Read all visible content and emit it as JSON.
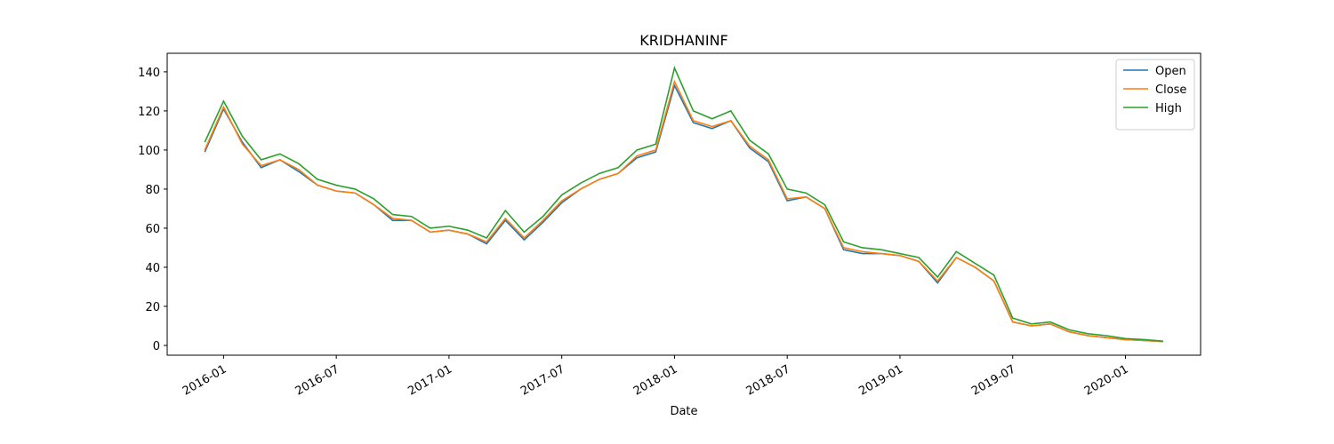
{
  "chart_data": {
    "type": "line",
    "title": "KRIDHANINF",
    "xlabel": "Date",
    "x": [
      "2015-12",
      "2016-01",
      "2016-02",
      "2016-03",
      "2016-04",
      "2016-05",
      "2016-06",
      "2016-07",
      "2016-08",
      "2016-09",
      "2016-10",
      "2016-11",
      "2016-12",
      "2017-01",
      "2017-02",
      "2017-03",
      "2017-04",
      "2017-05",
      "2017-06",
      "2017-07",
      "2017-08",
      "2017-09",
      "2017-10",
      "2017-11",
      "2017-12",
      "2018-01",
      "2018-02",
      "2018-03",
      "2018-04",
      "2018-05",
      "2018-06",
      "2018-07",
      "2018-08",
      "2018-09",
      "2018-10",
      "2018-11",
      "2018-12",
      "2019-01",
      "2019-02",
      "2019-03",
      "2019-04",
      "2019-05",
      "2019-06",
      "2019-07",
      "2019-08",
      "2019-09",
      "2019-10",
      "2019-11",
      "2019-12",
      "2020-01",
      "2020-02",
      "2020-03"
    ],
    "series": [
      {
        "name": "Open",
        "color": "#1f77b4",
        "values": [
          99,
          121,
          104,
          91,
          95,
          89,
          82,
          79,
          78,
          72,
          64,
          64,
          58,
          59,
          57,
          52,
          64,
          54,
          63,
          73,
          80,
          85,
          88,
          96,
          99,
          133,
          114,
          111,
          115,
          101,
          94,
          74,
          76,
          70,
          49,
          47,
          47,
          46,
          43,
          32,
          45,
          40,
          33,
          12,
          10,
          11,
          7,
          5,
          4,
          3,
          2.5,
          2
        ]
      },
      {
        "name": "Close",
        "color": "#ff7f0e",
        "values": [
          100,
          122,
          103,
          92,
          95,
          90,
          82,
          79,
          78,
          72,
          65,
          64,
          58,
          59,
          57,
          53,
          65,
          55,
          64,
          74,
          80,
          85,
          88,
          97,
          100,
          135,
          115,
          112,
          115,
          102,
          95,
          75,
          76,
          70,
          50,
          48,
          47,
          46,
          43,
          33,
          45,
          40,
          33,
          12,
          10,
          11,
          7,
          5,
          4,
          3,
          2.5,
          2
        ]
      },
      {
        "name": "High",
        "color": "#2ca02c",
        "values": [
          104,
          125,
          107,
          95,
          98,
          93,
          85,
          82,
          80,
          75,
          67,
          66,
          60,
          61,
          59,
          55,
          69,
          58,
          66,
          77,
          83,
          88,
          91,
          100,
          103,
          142,
          120,
          116,
          120,
          105,
          98,
          80,
          78,
          72,
          53,
          50,
          49,
          47,
          45,
          35,
          48,
          42,
          36,
          14,
          11,
          12,
          8,
          6,
          5,
          3.5,
          3,
          2.2
        ]
      }
    ],
    "xlim": [
      "2015-10",
      "2020-05"
    ],
    "xticks": [
      "2016-01",
      "2016-07",
      "2017-01",
      "2017-07",
      "2018-01",
      "2018-07",
      "2019-01",
      "2019-07",
      "2020-01"
    ],
    "ylim": [
      -5,
      149.5
    ],
    "yticks": [
      0,
      20,
      40,
      60,
      80,
      100,
      120,
      140
    ],
    "legend": "upper right"
  }
}
